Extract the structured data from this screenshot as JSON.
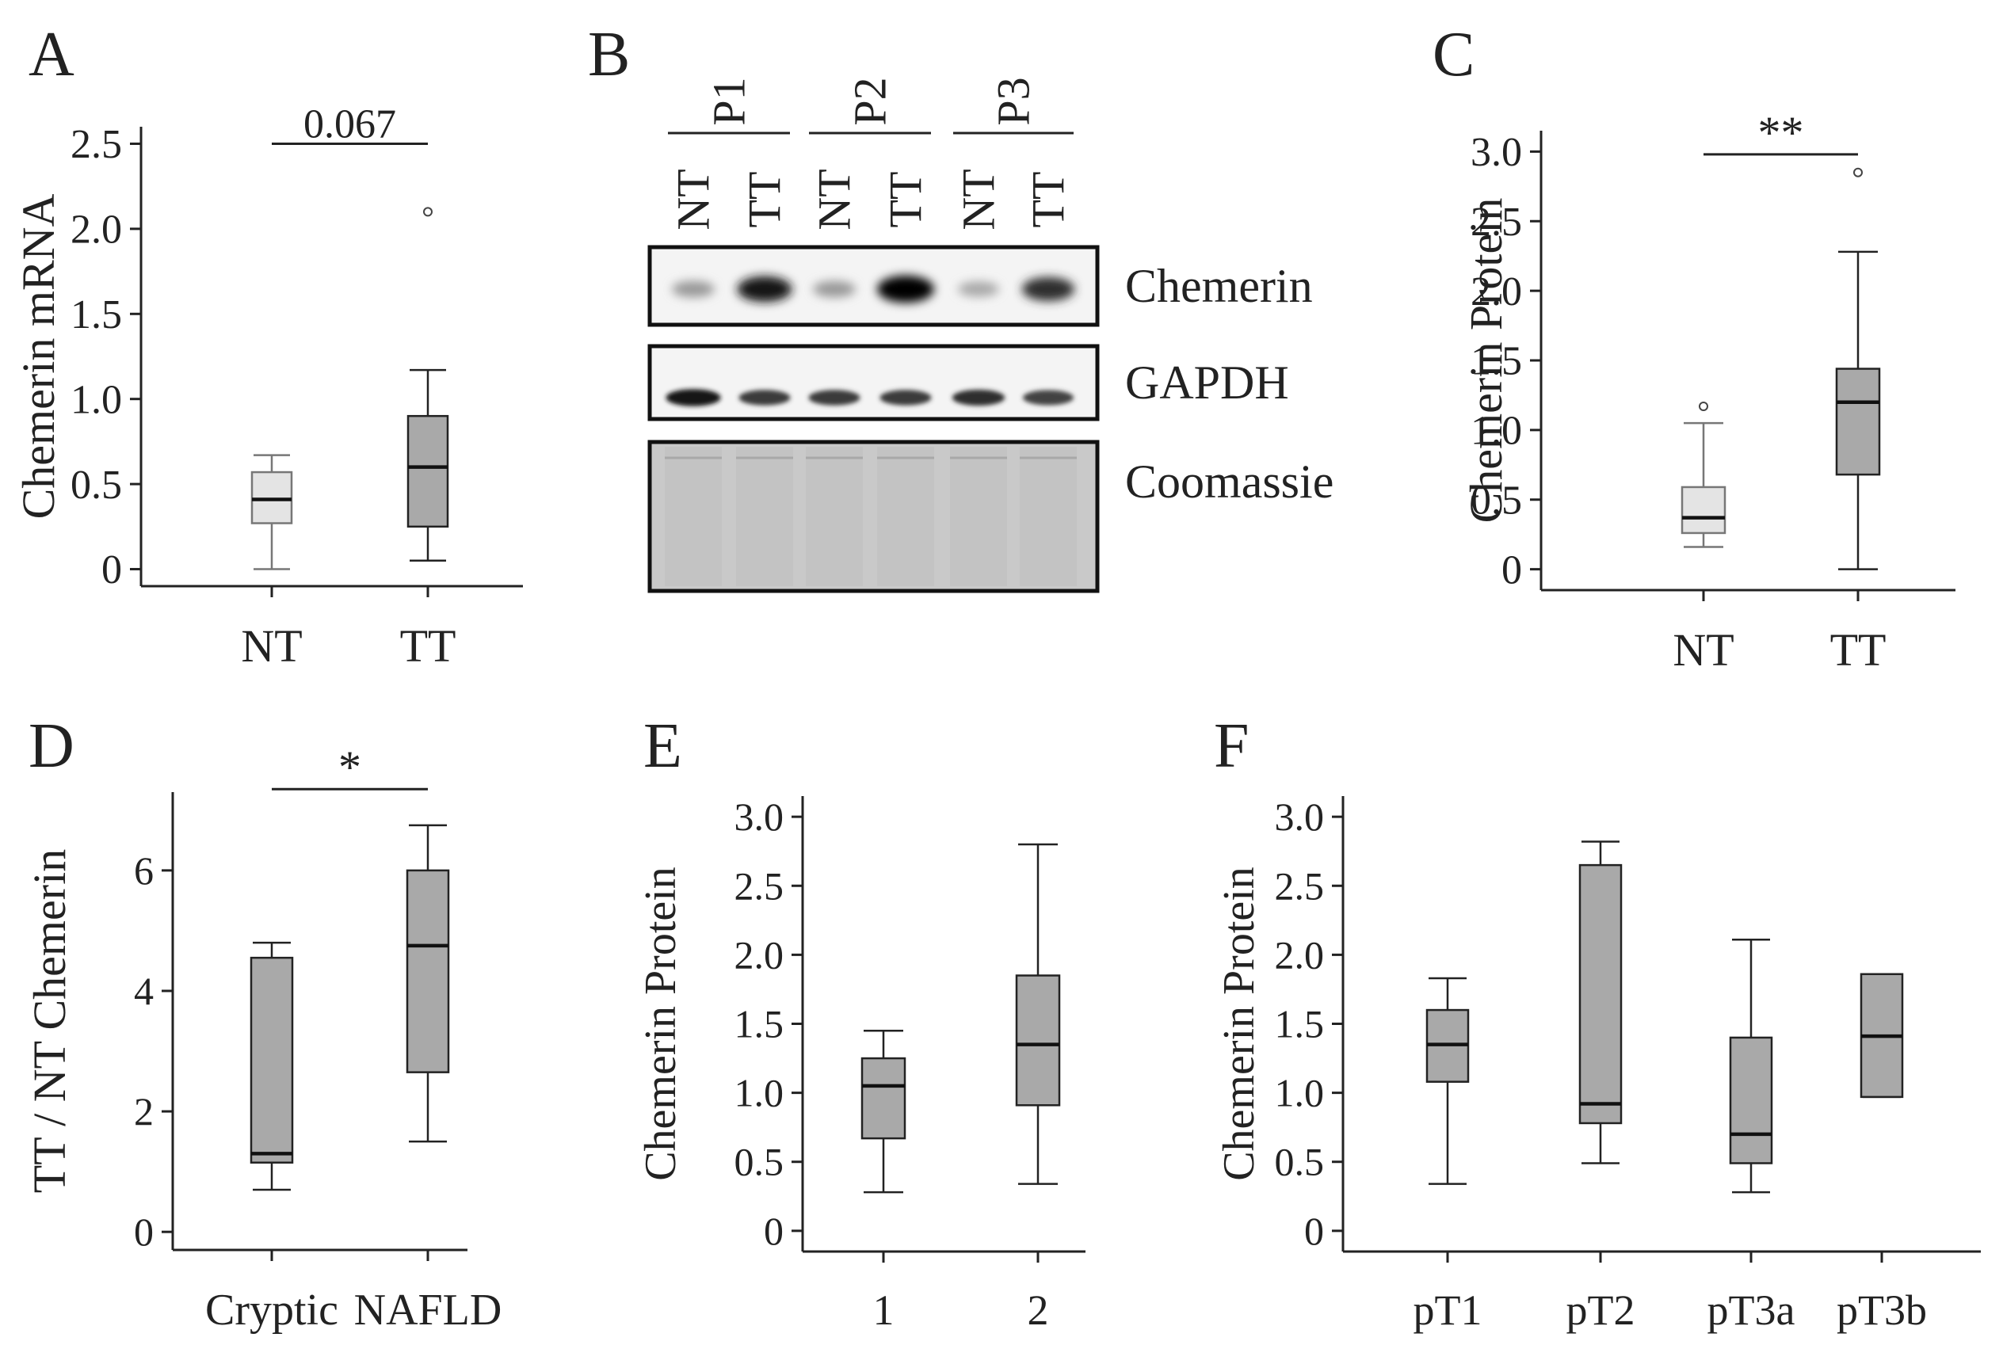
{
  "colors": {
    "nt_fill": "#e4e4e4",
    "tt_fill": "#a9a9a9",
    "axis": "#222222",
    "band_dark": "#0a0a0a",
    "coomassie": "#c9c9c9"
  },
  "chart_data": [
    {
      "panel": "A",
      "type": "box",
      "ylabel": "Chemerin mRNA",
      "categories": [
        "NT",
        "TT"
      ],
      "yticks": [
        "0",
        "0.5",
        "1.0",
        "1.5",
        "2.0",
        "2.5"
      ],
      "ylim": [
        -0.1,
        2.6
      ],
      "boxes": [
        {
          "min": 0.0,
          "q1": 0.27,
          "median": 0.41,
          "q3": 0.57,
          "max": 0.67,
          "outliers": [],
          "fill": "light"
        },
        {
          "min": 0.05,
          "q1": 0.25,
          "median": 0.6,
          "q3": 0.9,
          "max": 1.17,
          "outliers": [
            2.1
          ],
          "fill": "dark"
        }
      ],
      "significance": {
        "from": 0,
        "to": 1,
        "y": 2.5,
        "label": "0.067"
      }
    },
    {
      "panel": "C",
      "type": "box",
      "ylabel": "Chemerin Protein",
      "categories": [
        "NT",
        "TT"
      ],
      "yticks": [
        "0",
        "0.5",
        "1.0",
        "1.5",
        "2.0",
        "2.5",
        "3.0"
      ],
      "ylim": [
        -0.15,
        3.15
      ],
      "boxes": [
        {
          "min": 0.16,
          "q1": 0.26,
          "median": 0.37,
          "q3": 0.59,
          "max": 1.05,
          "outliers": [
            1.17
          ],
          "fill": "light"
        },
        {
          "min": 0.0,
          "q1": 0.68,
          "median": 1.2,
          "q3": 1.44,
          "max": 2.28,
          "outliers": [
            2.85
          ],
          "fill": "dark"
        }
      ],
      "significance": {
        "from": 0,
        "to": 1,
        "y": 2.98,
        "label": "**"
      }
    },
    {
      "panel": "D",
      "type": "box",
      "ylabel": "TT / NT Chemerin",
      "categories": [
        "Cryptic",
        "NAFLD"
      ],
      "yticks": [
        "0",
        "2",
        "4",
        "6"
      ],
      "ylim": [
        -0.3,
        7.3
      ],
      "boxes": [
        {
          "min": 0.7,
          "q1": 1.15,
          "median": 1.3,
          "q3": 4.55,
          "max": 4.8,
          "outliers": [],
          "fill": "dark"
        },
        {
          "min": 1.5,
          "q1": 2.65,
          "median": 4.75,
          "q3": 6.0,
          "max": 6.75,
          "outliers": [],
          "fill": "dark"
        }
      ],
      "significance": {
        "from": 0,
        "to": 1,
        "y": 7.35,
        "label": "*"
      }
    },
    {
      "panel": "E",
      "type": "box",
      "ylabel": "Chemerin Protein",
      "categories": [
        "1",
        "2"
      ],
      "yticks": [
        "0",
        "0.5",
        "1.0",
        "1.5",
        "2.0",
        "2.5",
        "3.0"
      ],
      "ylim": [
        -0.15,
        3.15
      ],
      "boxes": [
        {
          "min": 0.28,
          "q1": 0.67,
          "median": 1.05,
          "q3": 1.25,
          "max": 1.45,
          "outliers": [],
          "fill": "dark"
        },
        {
          "min": 0.34,
          "q1": 0.91,
          "median": 1.35,
          "q3": 1.85,
          "max": 2.8,
          "outliers": [],
          "fill": "dark"
        }
      ],
      "significance": null
    },
    {
      "panel": "F",
      "type": "box",
      "ylabel": "Chemerin Protein",
      "categories": [
        "pT1",
        "pT2",
        "pT3a",
        "pT3b"
      ],
      "yticks": [
        "0",
        "0.5",
        "1.0",
        "1.5",
        "2.0",
        "2.5",
        "3.0"
      ],
      "ylim": [
        -0.15,
        3.15
      ],
      "boxes": [
        {
          "min": 0.34,
          "q1": 1.08,
          "median": 1.35,
          "q3": 1.6,
          "max": 1.83,
          "outliers": [],
          "fill": "dark"
        },
        {
          "min": 0.49,
          "q1": 0.78,
          "median": 0.92,
          "q3": 2.65,
          "max": 2.82,
          "outliers": [],
          "fill": "dark"
        },
        {
          "min": 0.28,
          "q1": 0.49,
          "median": 0.7,
          "q3": 1.4,
          "max": 2.11,
          "outliers": [],
          "fill": "dark"
        },
        {
          "min": 0.97,
          "q1": 0.97,
          "median": 1.41,
          "q3": 1.86,
          "max": 1.86,
          "outliers": [],
          "fill": "dark"
        }
      ],
      "significance": null
    }
  ],
  "western_blot": {
    "panel": "B",
    "patients": [
      "P1",
      "P2",
      "P3"
    ],
    "lanes": [
      "NT",
      "TT",
      "NT",
      "TT",
      "NT",
      "TT"
    ],
    "rows": [
      {
        "label": "Chemerin",
        "intensity": [
          0.35,
          0.9,
          0.35,
          1.0,
          0.28,
          0.8
        ]
      },
      {
        "label": "GAPDH",
        "intensity": [
          0.9,
          0.75,
          0.75,
          0.75,
          0.8,
          0.72
        ]
      },
      {
        "label": "Coomassie",
        "intensity": [
          0.2,
          0.2,
          0.2,
          0.2,
          0.2,
          0.2
        ]
      }
    ]
  }
}
